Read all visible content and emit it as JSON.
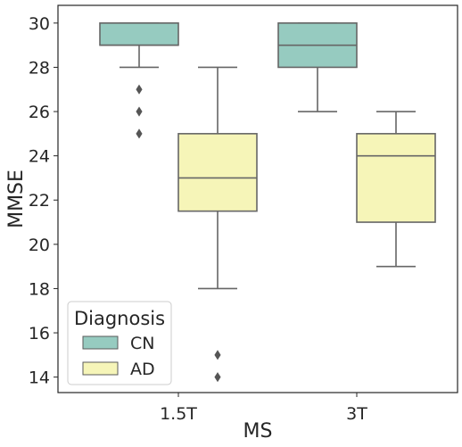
{
  "chart_data": {
    "type": "box",
    "xlabel": "MS",
    "ylabel": "MMSE",
    "categories": [
      "1.5T",
      "3T"
    ],
    "ylim": [
      13.3,
      30.8
    ],
    "yticks": [
      14,
      16,
      18,
      20,
      22,
      24,
      26,
      28,
      30
    ],
    "grid": false,
    "legend": {
      "title": "Diagnosis",
      "position": "lower-left"
    },
    "series": [
      {
        "name": "CN",
        "color": "#96cbc0",
        "boxes": [
          {
            "category": "1.5T",
            "whisker_low": 28,
            "q1": 29,
            "median": 29,
            "q3": 30,
            "whisker_high": 30,
            "outliers": [
              27,
              26,
              25
            ]
          },
          {
            "category": "3T",
            "whisker_low": 26,
            "q1": 28,
            "median": 29,
            "q3": 30,
            "whisker_high": 30,
            "outliers": []
          }
        ]
      },
      {
        "name": "AD",
        "color": "#f6f5b8",
        "boxes": [
          {
            "category": "1.5T",
            "whisker_low": 18,
            "q1": 21.5,
            "median": 23,
            "q3": 25,
            "whisker_high": 28,
            "outliers": [
              15,
              14
            ]
          },
          {
            "category": "3T",
            "whisker_low": 19,
            "q1": 21,
            "median": 24,
            "q3": 25,
            "whisker_high": 26,
            "outliers": []
          }
        ]
      }
    ]
  }
}
